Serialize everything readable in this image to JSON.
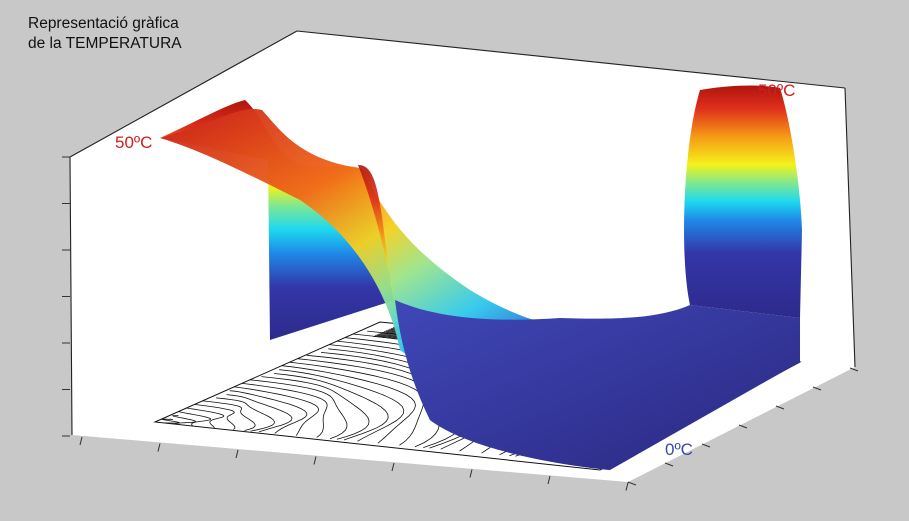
{
  "chart_data": {
    "type": "surface",
    "title_line1": "Representació gràfica",
    "title_line2": "de la TEMPERATURA",
    "annotations": [
      {
        "id": "left_peak",
        "text": "50ºC",
        "color": "#cc2020"
      },
      {
        "id": "right_peak",
        "text": "50ºC",
        "color": "#cc2020"
      },
      {
        "id": "bottom",
        "text": "0ºC",
        "color": "#3a4aa0"
      }
    ],
    "colormap": [
      "#2e2a8c",
      "#1f88e8",
      "#1ed8f0",
      "#7fe890",
      "#f4f21a",
      "#f69a16",
      "#e0301c",
      "#b0140e"
    ],
    "zlim": [
      0,
      50
    ],
    "z_units": "ºC",
    "grid": false
  }
}
